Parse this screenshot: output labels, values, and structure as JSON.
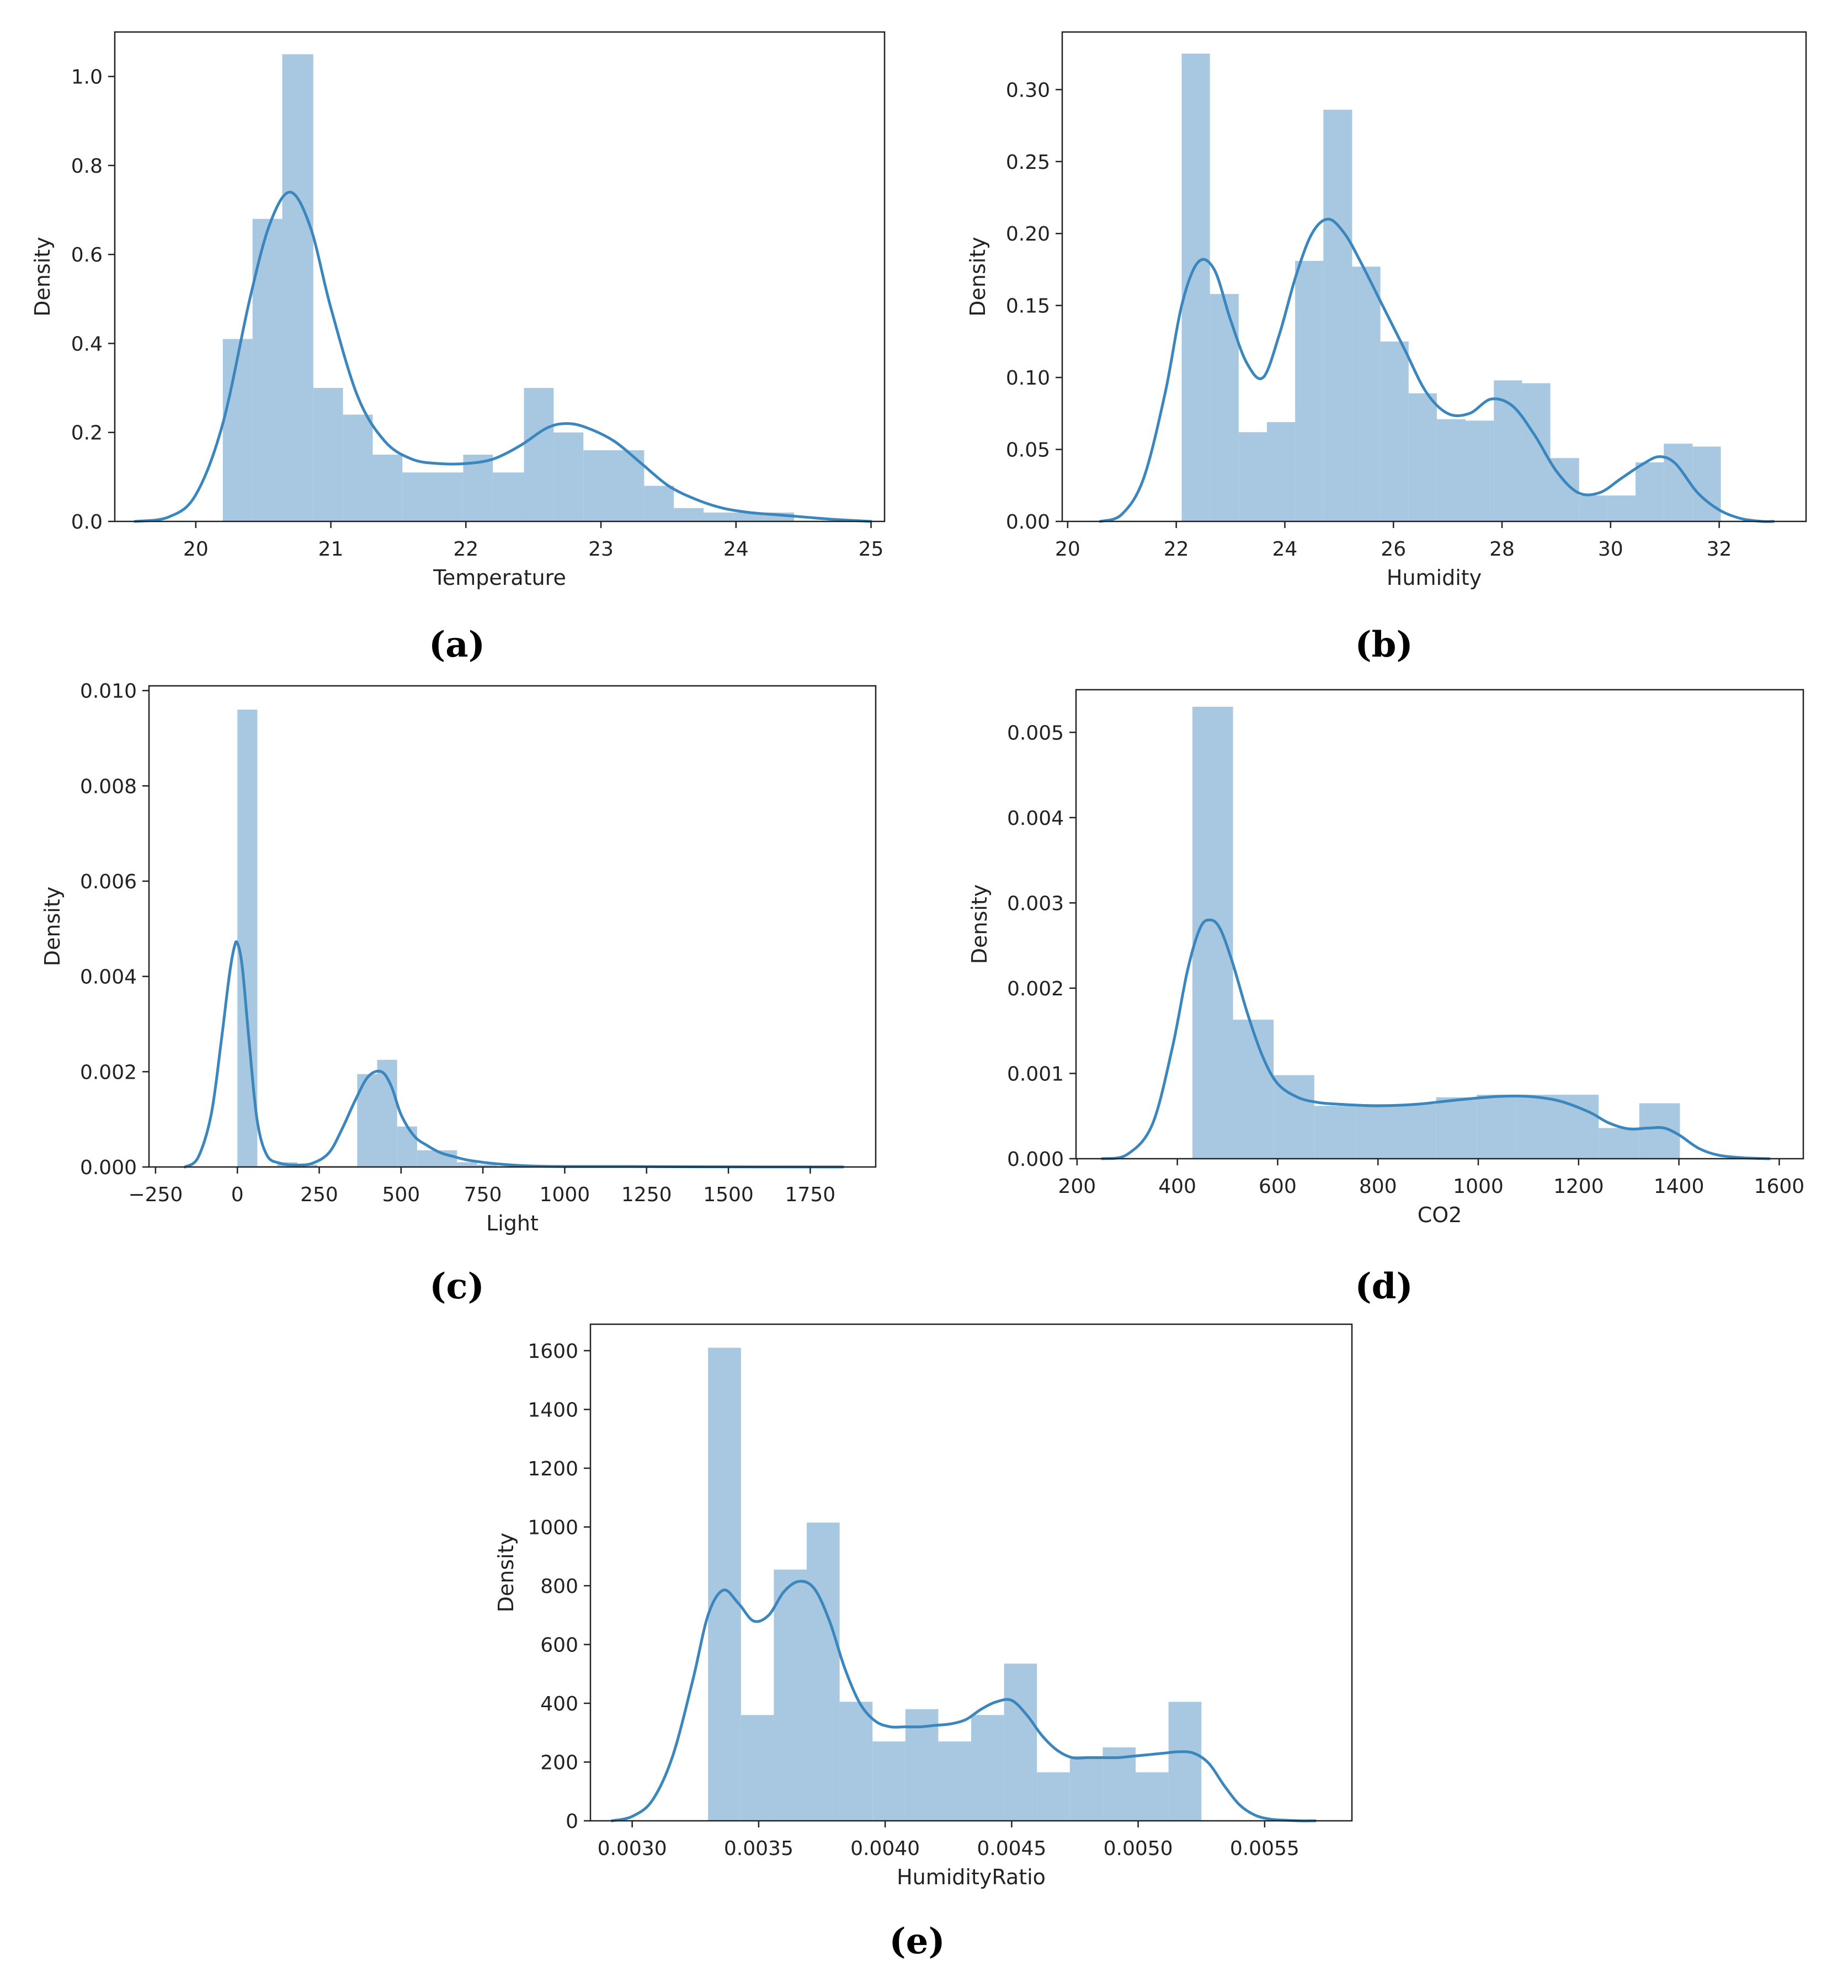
{
  "figure": {
    "bar_color": "#a7c8e0",
    "kde_color": "#3a86bd",
    "axis_color": "#222222"
  },
  "chart_data": [
    {
      "id": "a",
      "type": "bar",
      "caption": "(a)",
      "title": "",
      "xlabel": "Temperature",
      "ylabel": "Density",
      "xlim": [
        19.4,
        25.1
      ],
      "ylim": [
        0,
        1.1
      ],
      "xticks": [
        20,
        21,
        22,
        23,
        24,
        25
      ],
      "xtick_labels": [
        "20",
        "21",
        "22",
        "23",
        "24",
        "25"
      ],
      "yticks": [
        0,
        0.2,
        0.4,
        0.6,
        0.8,
        1.0
      ],
      "ytick_labels": [
        "0.0",
        "0.2",
        "0.4",
        "0.6",
        "0.8",
        "1.0"
      ],
      "bins": [
        {
          "x0": 20.2,
          "x1": 20.42,
          "density": 0.41
        },
        {
          "x0": 20.42,
          "x1": 20.64,
          "density": 0.68
        },
        {
          "x0": 20.64,
          "x1": 20.87,
          "density": 1.05
        },
        {
          "x0": 20.87,
          "x1": 21.09,
          "density": 0.3
        },
        {
          "x0": 21.09,
          "x1": 21.31,
          "density": 0.24
        },
        {
          "x0": 21.31,
          "x1": 21.53,
          "density": 0.15
        },
        {
          "x0": 21.53,
          "x1": 21.76,
          "density": 0.11
        },
        {
          "x0": 21.76,
          "x1": 21.98,
          "density": 0.11
        },
        {
          "x0": 21.98,
          "x1": 22.2,
          "density": 0.15
        },
        {
          "x0": 22.2,
          "x1": 22.43,
          "density": 0.11
        },
        {
          "x0": 22.43,
          "x1": 22.65,
          "density": 0.3
        },
        {
          "x0": 22.65,
          "x1": 22.87,
          "density": 0.2
        },
        {
          "x0": 22.87,
          "x1": 23.09,
          "density": 0.16
        },
        {
          "x0": 23.09,
          "x1": 23.32,
          "density": 0.16
        },
        {
          "x0": 23.32,
          "x1": 23.54,
          "density": 0.08
        },
        {
          "x0": 23.54,
          "x1": 23.76,
          "density": 0.03
        },
        {
          "x0": 23.76,
          "x1": 23.98,
          "density": 0.02
        },
        {
          "x0": 23.98,
          "x1": 24.21,
          "density": 0.02
        },
        {
          "x0": 24.21,
          "x1": 24.43,
          "density": 0.02
        }
      ],
      "kde": {
        "x": [
          19.55,
          19.8,
          20.0,
          20.2,
          20.4,
          20.55,
          20.7,
          20.85,
          21.0,
          21.2,
          21.4,
          21.6,
          21.8,
          22.0,
          22.2,
          22.4,
          22.6,
          22.75,
          22.9,
          23.1,
          23.3,
          23.5,
          23.7,
          23.9,
          24.1,
          24.3,
          24.5,
          24.7,
          25.0
        ],
        "y": [
          0.0,
          0.01,
          0.06,
          0.22,
          0.5,
          0.67,
          0.74,
          0.66,
          0.48,
          0.28,
          0.18,
          0.14,
          0.13,
          0.13,
          0.14,
          0.17,
          0.21,
          0.22,
          0.21,
          0.18,
          0.13,
          0.08,
          0.05,
          0.03,
          0.02,
          0.015,
          0.01,
          0.005,
          0.0
        ]
      }
    },
    {
      "id": "b",
      "type": "bar",
      "caption": "(b)",
      "title": "",
      "xlabel": "Humidity",
      "ylabel": "Density",
      "xlim": [
        19.9,
        33.6
      ],
      "ylim": [
        0,
        0.34
      ],
      "xticks": [
        20,
        22,
        24,
        26,
        28,
        30,
        32
      ],
      "xtick_labels": [
        "20",
        "22",
        "24",
        "26",
        "28",
        "30",
        "32"
      ],
      "yticks": [
        0,
        0.05,
        0.1,
        0.15,
        0.2,
        0.25,
        0.3
      ],
      "ytick_labels": [
        "0.00",
        "0.05",
        "0.10",
        "0.15",
        "0.20",
        "0.25",
        "0.30"
      ],
      "bins": [
        {
          "x0": 22.1,
          "x1": 22.62,
          "density": 0.325
        },
        {
          "x0": 22.62,
          "x1": 23.15,
          "density": 0.158
        },
        {
          "x0": 23.15,
          "x1": 23.67,
          "density": 0.062
        },
        {
          "x0": 23.67,
          "x1": 24.19,
          "density": 0.069
        },
        {
          "x0": 24.19,
          "x1": 24.71,
          "density": 0.181
        },
        {
          "x0": 24.71,
          "x1": 25.24,
          "density": 0.286
        },
        {
          "x0": 25.24,
          "x1": 25.76,
          "density": 0.177
        },
        {
          "x0": 25.76,
          "x1": 26.28,
          "density": 0.125
        },
        {
          "x0": 26.28,
          "x1": 26.8,
          "density": 0.089
        },
        {
          "x0": 26.8,
          "x1": 27.33,
          "density": 0.071
        },
        {
          "x0": 27.33,
          "x1": 27.85,
          "density": 0.07
        },
        {
          "x0": 27.85,
          "x1": 28.37,
          "density": 0.098
        },
        {
          "x0": 28.37,
          "x1": 28.89,
          "density": 0.096
        },
        {
          "x0": 28.89,
          "x1": 29.42,
          "density": 0.044
        },
        {
          "x0": 29.42,
          "x1": 29.94,
          "density": 0.018
        },
        {
          "x0": 29.94,
          "x1": 30.46,
          "density": 0.018
        },
        {
          "x0": 30.46,
          "x1": 30.98,
          "density": 0.041
        },
        {
          "x0": 30.98,
          "x1": 31.51,
          "density": 0.054
        },
        {
          "x0": 31.51,
          "x1": 32.03,
          "density": 0.052
        }
      ],
      "kde": {
        "x": [
          20.6,
          21.0,
          21.4,
          21.8,
          22.1,
          22.4,
          22.7,
          23.0,
          23.3,
          23.6,
          23.9,
          24.2,
          24.5,
          24.8,
          25.1,
          25.4,
          25.8,
          26.2,
          26.6,
          27.0,
          27.4,
          27.8,
          28.2,
          28.6,
          29.0,
          29.4,
          29.8,
          30.2,
          30.6,
          30.9,
          31.2,
          31.6,
          32.0,
          32.4,
          32.8,
          33.0
        ],
        "y": [
          0.0,
          0.005,
          0.03,
          0.09,
          0.15,
          0.18,
          0.175,
          0.14,
          0.11,
          0.1,
          0.13,
          0.17,
          0.2,
          0.21,
          0.2,
          0.18,
          0.15,
          0.12,
          0.09,
          0.075,
          0.075,
          0.085,
          0.08,
          0.06,
          0.035,
          0.02,
          0.02,
          0.03,
          0.04,
          0.045,
          0.04,
          0.02,
          0.008,
          0.002,
          0.0,
          0.0
        ]
      }
    },
    {
      "id": "c",
      "type": "bar",
      "caption": "(c)",
      "title": "",
      "xlabel": "Light",
      "ylabel": "Density",
      "xlim": [
        -270,
        1950
      ],
      "ylim": [
        0,
        0.0101
      ],
      "xticks": [
        -250,
        0,
        250,
        500,
        750,
        1000,
        1250,
        1500,
        1750
      ],
      "xtick_labels": [
        "−250",
        "0",
        "250",
        "500",
        "750",
        "1000",
        "1250",
        "1500",
        "1750"
      ],
      "yticks": [
        0,
        0.002,
        0.004,
        0.006,
        0.008,
        0.01
      ],
      "ytick_labels": [
        "0.000",
        "0.002",
        "0.004",
        "0.006",
        "0.008",
        "0.010"
      ],
      "bins": [
        {
          "x0": 0,
          "x1": 61,
          "density": 0.0096
        },
        {
          "x0": 61,
          "x1": 122,
          "density": 2e-05
        },
        {
          "x0": 122,
          "x1": 183,
          "density": 0.0001
        },
        {
          "x0": 183,
          "x1": 244,
          "density": 5e-05
        },
        {
          "x0": 244,
          "x1": 305,
          "density": 2e-05
        },
        {
          "x0": 305,
          "x1": 366,
          "density": 2e-05
        },
        {
          "x0": 366,
          "x1": 427,
          "density": 0.00195
        },
        {
          "x0": 427,
          "x1": 488,
          "density": 0.00225
        },
        {
          "x0": 488,
          "x1": 549,
          "density": 0.00085
        },
        {
          "x0": 549,
          "x1": 610,
          "density": 0.00035
        },
        {
          "x0": 610,
          "x1": 671,
          "density": 0.00035
        },
        {
          "x0": 671,
          "x1": 732,
          "density": 0.0001
        },
        {
          "x0": 732,
          "x1": 793,
          "density": 5e-05
        },
        {
          "x0": 793,
          "x1": 854,
          "density": 2e-05
        }
      ],
      "kde": {
        "x": [
          -160,
          -120,
          -80,
          -50,
          -25,
          -10,
          0,
          15,
          35,
          60,
          90,
          130,
          180,
          230,
          280,
          320,
          360,
          400,
          440,
          470,
          500,
          540,
          580,
          620,
          660,
          700,
          760,
          820,
          900,
          1000,
          1200,
          1400,
          1600,
          1800,
          1850
        ],
        "y": [
          0.0,
          0.0002,
          0.0011,
          0.0026,
          0.004,
          0.0046,
          0.0047,
          0.0042,
          0.0027,
          0.001,
          0.00025,
          8e-05,
          4e-05,
          8e-05,
          0.0003,
          0.0008,
          0.0014,
          0.0019,
          0.002,
          0.0017,
          0.0011,
          0.00065,
          0.00045,
          0.0003,
          0.00022,
          0.00015,
          9e-05,
          5e-05,
          2e-05,
          1e-05,
          1e-05,
          5e-06,
          2e-06,
          0.0,
          0.0
        ]
      }
    },
    {
      "id": "d",
      "type": "bar",
      "caption": "(d)",
      "title": "",
      "xlabel": "CO2",
      "ylabel": "Density",
      "xlim": [
        198,
        1648
      ],
      "ylim": [
        0,
        0.0055
      ],
      "xticks": [
        200,
        400,
        600,
        800,
        1000,
        1200,
        1400,
        1600
      ],
      "xtick_labels": [
        "200",
        "400",
        "600",
        "800",
        "1000",
        "1200",
        "1400",
        "1600"
      ],
      "yticks": [
        0,
        0.001,
        0.002,
        0.003,
        0.004,
        0.005
      ],
      "ytick_labels": [
        "0.000",
        "0.001",
        "0.002",
        "0.003",
        "0.004",
        "0.005"
      ],
      "bins": [
        {
          "x0": 430,
          "x1": 511,
          "density": 0.0053
        },
        {
          "x0": 511,
          "x1": 592,
          "density": 0.00163
        },
        {
          "x0": 592,
          "x1": 673,
          "density": 0.00098
        },
        {
          "x0": 673,
          "x1": 754,
          "density": 0.00062
        },
        {
          "x0": 754,
          "x1": 835,
          "density": 0.00064
        },
        {
          "x0": 835,
          "x1": 916,
          "density": 0.00064
        },
        {
          "x0": 916,
          "x1": 997,
          "density": 0.00072
        },
        {
          "x0": 997,
          "x1": 1078,
          "density": 0.00075
        },
        {
          "x0": 1078,
          "x1": 1159,
          "density": 0.00075
        },
        {
          "x0": 1159,
          "x1": 1240,
          "density": 0.00075
        },
        {
          "x0": 1240,
          "x1": 1321,
          "density": 0.00036
        },
        {
          "x0": 1321,
          "x1": 1402,
          "density": 0.00065
        }
      ],
      "kde": {
        "x": [
          250,
          300,
          350,
          390,
          420,
          445,
          465,
          485,
          510,
          540,
          570,
          600,
          640,
          680,
          720,
          800,
          880,
          960,
          1040,
          1100,
          1160,
          1220,
          1260,
          1300,
          1340,
          1370,
          1400,
          1440,
          1480,
          1530,
          1580
        ],
        "y": [
          0.0,
          5e-05,
          0.0004,
          0.0013,
          0.0022,
          0.0027,
          0.0028,
          0.0027,
          0.0023,
          0.0017,
          0.0012,
          0.00088,
          0.00072,
          0.00066,
          0.00064,
          0.00062,
          0.00064,
          0.00069,
          0.00073,
          0.00073,
          0.00068,
          0.00055,
          0.00042,
          0.00035,
          0.00036,
          0.00036,
          0.00028,
          0.00012,
          4e-05,
          1e-05,
          0.0
        ]
      }
    },
    {
      "id": "e",
      "type": "bar",
      "caption": "(e)",
      "title": "",
      "xlabel": "HumidityRatio",
      "ylabel": "Density",
      "xlim": [
        0.002835,
        0.005845
      ],
      "ylim": [
        0,
        1690
      ],
      "xticks": [
        0.003,
        0.0035,
        0.004,
        0.0045,
        0.005,
        0.0055
      ],
      "xtick_labels": [
        "0.0030",
        "0.0035",
        "0.0040",
        "0.0045",
        "0.0050",
        "0.0055"
      ],
      "yticks": [
        0,
        200,
        400,
        600,
        800,
        1000,
        1200,
        1400,
        1600
      ],
      "ytick_labels": [
        "0",
        "200",
        "400",
        "600",
        "800",
        "1000",
        "1200",
        "1400",
        "1600"
      ],
      "bins": [
        {
          "x0": 0.0033,
          "x1": 0.00343,
          "density": 1610
        },
        {
          "x0": 0.00343,
          "x1": 0.00356,
          "density": 360
        },
        {
          "x0": 0.00356,
          "x1": 0.00369,
          "density": 855
        },
        {
          "x0": 0.00369,
          "x1": 0.00382,
          "density": 1015
        },
        {
          "x0": 0.00382,
          "x1": 0.00395,
          "density": 405
        },
        {
          "x0": 0.00395,
          "x1": 0.00408,
          "density": 270
        },
        {
          "x0": 0.00408,
          "x1": 0.00421,
          "density": 380
        },
        {
          "x0": 0.00421,
          "x1": 0.00434,
          "density": 270
        },
        {
          "x0": 0.00434,
          "x1": 0.00447,
          "density": 360
        },
        {
          "x0": 0.00447,
          "x1": 0.0046,
          "density": 535
        },
        {
          "x0": 0.0046,
          "x1": 0.00473,
          "density": 165
        },
        {
          "x0": 0.00473,
          "x1": 0.00486,
          "density": 220
        },
        {
          "x0": 0.00486,
          "x1": 0.00499,
          "density": 250
        },
        {
          "x0": 0.00499,
          "x1": 0.00512,
          "density": 165
        },
        {
          "x0": 0.00512,
          "x1": 0.00525,
          "density": 405
        }
      ],
      "kde": {
        "x": [
          0.00292,
          0.003,
          0.00308,
          0.00316,
          0.00324,
          0.0033,
          0.00336,
          0.00342,
          0.00348,
          0.00354,
          0.0036,
          0.00366,
          0.00372,
          0.00378,
          0.00384,
          0.0039,
          0.00396,
          0.00402,
          0.00408,
          0.00414,
          0.0042,
          0.00426,
          0.00432,
          0.00438,
          0.00444,
          0.0045,
          0.00456,
          0.00462,
          0.00468,
          0.00474,
          0.0048,
          0.00486,
          0.00492,
          0.00498,
          0.00504,
          0.0051,
          0.00516,
          0.00522,
          0.00528,
          0.00534,
          0.0054,
          0.00546,
          0.00552,
          0.00558,
          0.00564,
          0.0057
        ],
        "y": [
          0,
          15,
          70,
          220,
          480,
          700,
          785,
          740,
          680,
          700,
          780,
          815,
          790,
          680,
          520,
          400,
          340,
          320,
          320,
          320,
          325,
          330,
          345,
          380,
          405,
          410,
          360,
          290,
          240,
          215,
          215,
          215,
          215,
          220,
          225,
          230,
          235,
          230,
          195,
          120,
          55,
          20,
          6,
          2,
          0,
          0
        ]
      }
    }
  ]
}
